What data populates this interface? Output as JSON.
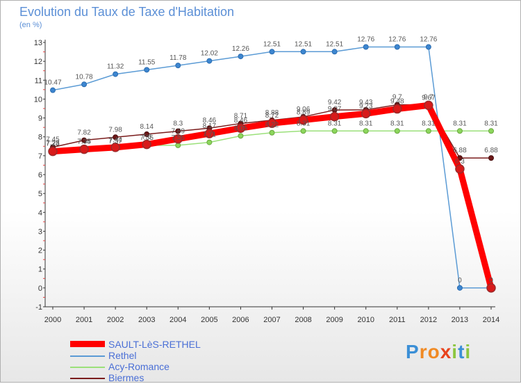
{
  "header": {
    "title": "Evolution du Taux de Taxe d'Habitation",
    "subtitle": "(en %)"
  },
  "logo": {
    "text": "Proxiti"
  },
  "chart_data": {
    "type": "line",
    "title": "Evolution du Taux de Taxe d'Habitation",
    "subtitle": "(en %)",
    "xlabel": "",
    "ylabel": "",
    "x": [
      2000,
      2001,
      2002,
      2003,
      2004,
      2005,
      2006,
      2007,
      2008,
      2009,
      2010,
      2011,
      2012,
      2013,
      2014
    ],
    "ylim": [
      -1,
      13
    ],
    "yticks": [
      -1,
      0,
      1,
      2,
      3,
      4,
      5,
      6,
      7,
      8,
      9,
      10,
      11,
      12,
      13
    ],
    "grid": false,
    "legend_position": "bottom-left",
    "series": [
      {
        "name": "SAULT-LèS-RETHEL",
        "color": "#ff0000",
        "values": [
          7.23,
          7.34,
          7.44,
          7.6,
          7.89,
          8.17,
          8.46,
          8.72,
          8.89,
          9.07,
          9.23,
          9.48,
          9.67,
          6.3,
          0
        ],
        "labels": [
          "7.23",
          "7.34",
          "7.44",
          "7.6",
          "7.89",
          "8.17",
          "8.46",
          "8.72",
          "8.89",
          "9.07",
          "9.23",
          "9.48",
          "9.67",
          "6.3",
          "0"
        ]
      },
      {
        "name": "Rethel",
        "color": "#5b9bd5",
        "values": [
          10.47,
          10.78,
          11.32,
          11.55,
          11.78,
          12.02,
          12.26,
          12.51,
          12.51,
          12.51,
          12.76,
          12.76,
          12.76,
          0,
          0
        ],
        "labels": [
          "10.47",
          "10.78",
          "11.32",
          "11.55",
          "11.78",
          "12.02",
          "12.26",
          "12.51",
          "12.51",
          "12.51",
          "12.76",
          "12.76",
          "12.76",
          "0",
          "0"
        ]
      },
      {
        "name": "Acy-Romance",
        "color": "#9be07a",
        "values": [
          7.28,
          7.35,
          7.37,
          7.55,
          7.55,
          7.71,
          8.05,
          8.22,
          8.31,
          8.31,
          8.31,
          8.31,
          8.31,
          8.31,
          8.31
        ],
        "labels": [
          "7.28",
          "7.35",
          "7.37",
          "7.55",
          "7.55",
          "7.71",
          "8.05",
          "8.22",
          "8.31",
          "8.31",
          "8.31",
          "8.31",
          "8.31",
          "8.31",
          "8.31"
        ]
      },
      {
        "name": "Biermes",
        "color": "#7a1c1c",
        "values": [
          7.45,
          7.82,
          7.98,
          8.14,
          8.3,
          8.46,
          8.71,
          8.88,
          9.06,
          9.42,
          9.43,
          9.7,
          9.7,
          6.88,
          6.88
        ],
        "labels": [
          "7.45",
          "7.82",
          "7.98",
          "8.14",
          "8.3",
          "8.46",
          "8.71",
          "8.88",
          "9.06",
          "9.42",
          "9.43",
          "9.7",
          "9.7",
          "6.88",
          "6.88"
        ]
      }
    ]
  }
}
